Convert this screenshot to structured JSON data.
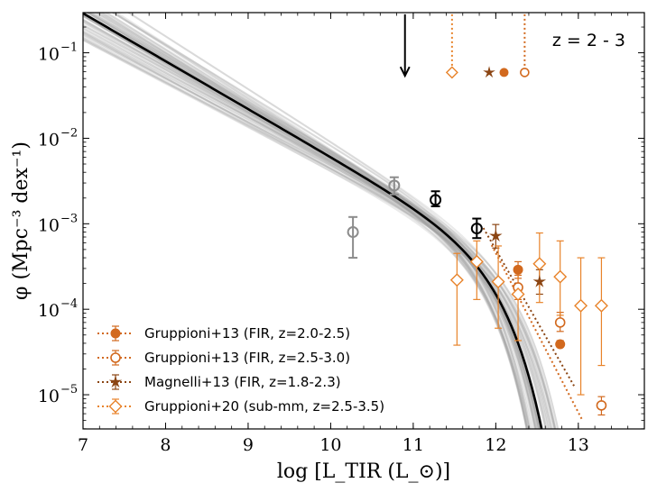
{
  "chart_data": {
    "type": "scatter",
    "title": "",
    "annotation": "z = 2 - 3",
    "xlabel": "log [L_TIR (L_⊙)]",
    "ylabel": "φ (Mpc⁻³ dex⁻¹)",
    "xscale": "linear",
    "yscale": "log",
    "xlim": [
      7.0,
      13.8
    ],
    "ylim_log10": [
      -5.4,
      -0.53
    ],
    "x_ticks": [
      7,
      8,
      9,
      10,
      11,
      12,
      13
    ],
    "x_tick_labels": [
      "7",
      "8",
      "9",
      "10",
      "11",
      "12",
      "13"
    ],
    "y_ticks_log10": [
      -5,
      -4,
      -3,
      -2,
      -1
    ],
    "y_tick_labels": [
      "10",
      "10",
      "10",
      "10",
      "10"
    ],
    "y_tick_exponents": [
      "−5",
      "−4",
      "−3",
      "−2",
      "−1"
    ],
    "colors": {
      "dark_orange": "#d2691e",
      "orange": "#e8832a",
      "brown": "#8b4513",
      "grey_points": "#8c8c8c",
      "best_fit": "#000000",
      "posterior": "#a0a0a0"
    },
    "best_fit_curve": {
      "model": "Schechter",
      "alpha": 1.56,
      "log_L_star": 11.95,
      "log_phi_star": -3.31,
      "x_range": [
        7.0,
        13.8
      ]
    },
    "upper_limit_arrow": {
      "x": 10.9,
      "y_top_log10": -0.55,
      "y_bottom_log10": -1.27
    },
    "this_work_points": [
      {
        "x": 10.27,
        "y": 0.0008,
        "err_low": 0.0004,
        "err_high": 0.0012,
        "color": "grey"
      },
      {
        "x": 10.77,
        "y": 0.0028,
        "err_low": 0.0022,
        "err_high": 0.0035,
        "color": "grey"
      },
      {
        "x": 11.27,
        "y": 0.0019,
        "err_low": 0.0016,
        "err_high": 0.0024,
        "color": "black"
      },
      {
        "x": 11.77,
        "y": 0.00088,
        "err_low": 0.00068,
        "err_high": 0.00115,
        "color": "black"
      }
    ],
    "series": [
      {
        "name": "Gruppioni+13 (FIR, z=2.0-2.5)",
        "marker": "filled-circle",
        "color": "dark_orange",
        "points": [
          {
            "x": 12.27,
            "y": 0.00029,
            "err_low": 0.00023,
            "err_high": 0.00036
          },
          {
            "x": 12.78,
            "y": 3.9e-05,
            "err_low": 3.6e-05,
            "err_high": 4.3e-05
          }
        ],
        "fit_line": {
          "style": "dotted",
          "x": [
            11.95,
            13.05
          ],
          "log10_y": [
            -3.25,
            -5.3
          ]
        },
        "upper_marker": {
          "x": 12.1,
          "log10_y": -1.23
        }
      },
      {
        "name": "Gruppioni+13 (FIR, z=2.5-3.0)",
        "marker": "open-circle",
        "color": "dark_orange",
        "points": [
          {
            "x": 12.27,
            "y": 0.00018,
            "err_low": 0.00013,
            "err_high": 0.00025
          },
          {
            "x": 12.78,
            "y": 7e-05,
            "err_low": 5.5e-05,
            "err_high": 9.2e-05
          },
          {
            "x": 13.28,
            "y": 7.5e-06,
            "err_low": 5.8e-06,
            "err_high": 9.5e-06
          }
        ],
        "fit_line": {
          "style": "dotted",
          "x": [
            12.35,
            12.35
          ],
          "log10_y": [
            -0.55,
            -1.22
          ]
        },
        "upper_marker": {
          "x": 12.35,
          "log10_y": -1.23
        }
      },
      {
        "name": "Magnelli+13 (FIR, z=1.8-2.3)",
        "marker": "star",
        "color": "brown",
        "points": [
          {
            "x": 12.0,
            "y": 0.00072,
            "err_low": 0.00052,
            "err_high": 0.00098
          },
          {
            "x": 12.53,
            "y": 0.00021,
            "err_low": 0.00015,
            "err_high": 0.00029
          }
        ],
        "fit_line": {
          "style": "dotted",
          "x": [
            11.85,
            12.95
          ],
          "log10_y": [
            -3.05,
            -4.9
          ]
        },
        "upper_marker": {
          "x": 11.92,
          "log10_y": -1.23
        }
      },
      {
        "name": "Gruppioni+20 (sub-mm, z=2.5-3.5)",
        "marker": "open-diamond",
        "color": "orange",
        "points": [
          {
            "x": 11.53,
            "y": 0.00022,
            "err_low": 3.8e-05,
            "err_high": 0.00045
          },
          {
            "x": 11.77,
            "y": 0.00036,
            "err_low": 0.00013,
            "err_high": 0.00063
          },
          {
            "x": 12.03,
            "y": 0.00021,
            "err_low": 6e-05,
            "err_high": 0.00055
          },
          {
            "x": 12.27,
            "y": 0.00015,
            "err_low": 4.3e-05,
            "err_high": 0.0003
          },
          {
            "x": 12.53,
            "y": 0.00034,
            "err_low": 0.00012,
            "err_high": 0.00078
          },
          {
            "x": 12.78,
            "y": 0.00024,
            "err_low": 8.5e-05,
            "err_high": 0.00063
          },
          {
            "x": 13.03,
            "y": 0.00011,
            "err_low": 1e-05,
            "err_high": 0.0004
          },
          {
            "x": 13.28,
            "y": 0.00011,
            "err_low": 2.2e-05,
            "err_high": 0.0004
          }
        ],
        "fit_line": {
          "style": "dotted",
          "x": [
            11.47,
            11.47
          ],
          "log10_y": [
            -0.55,
            -1.22
          ]
        },
        "upper_marker": {
          "x": 11.47,
          "log10_y": -1.23
        }
      }
    ],
    "legend": {
      "position": "lower-left",
      "entries": [
        "Gruppioni+13 (FIR, z=2.0-2.5)",
        "Gruppioni+13 (FIR, z=2.5-3.0)",
        "Magnelli+13 (FIR, z=1.8-2.3)",
        "Gruppioni+20 (sub-mm, z=2.5-3.5)"
      ]
    }
  }
}
